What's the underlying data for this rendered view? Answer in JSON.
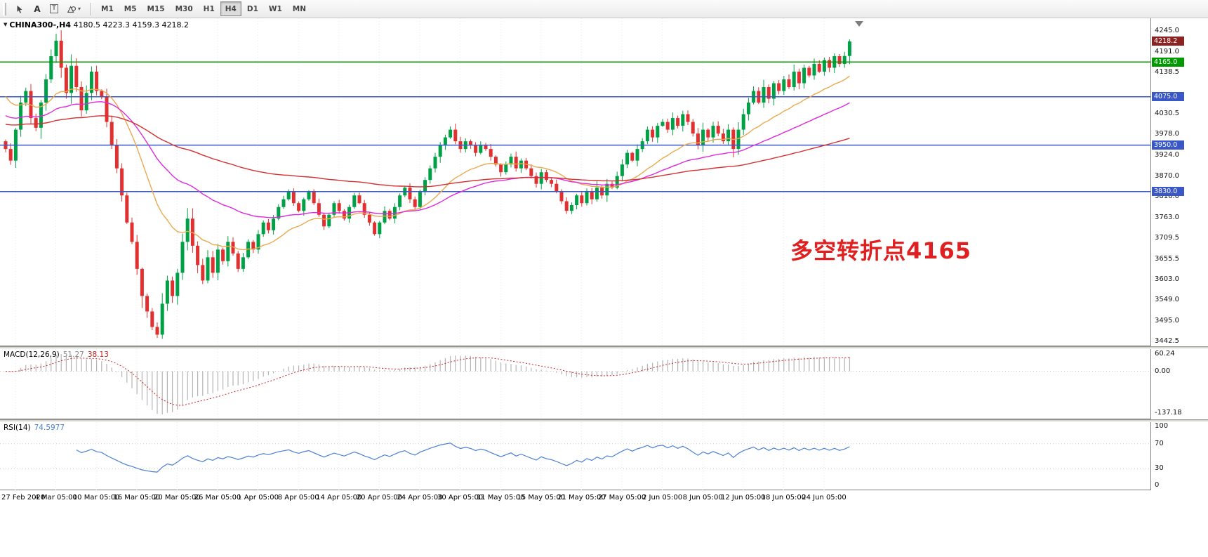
{
  "toolbar": {
    "tools": {
      "text_label": "A",
      "textbox_label": "T"
    },
    "timeframes": [
      "M1",
      "M5",
      "M15",
      "M30",
      "H1",
      "H4",
      "D1",
      "W1",
      "MN"
    ],
    "active_timeframe": "H4"
  },
  "main_chart": {
    "symbol_period": "CHINA300-,H4",
    "ohlc_text": "4180.5 4223.3 4159.3 4218.2",
    "annotation": {
      "text": "多空转折点4165",
      "color": "#E02020"
    },
    "price_scale": {
      "labels": [
        "4245.0",
        "4191.0",
        "4138.5",
        "4030.5",
        "3978.0",
        "3924.0",
        "3870.0",
        "3816.0",
        "3763.0",
        "3709.5",
        "3655.5",
        "3603.0",
        "3549.0",
        "3495.0",
        "3442.5"
      ],
      "tags": [
        {
          "text": "4218.2",
          "value": 4218.2,
          "color": "#8B2323",
          "type": "current-price"
        },
        {
          "text": "4165.0",
          "value": 4165,
          "color": "#009A00",
          "type": "hline"
        },
        {
          "text": "4075.0",
          "value": 4075,
          "color": "#3A57C8",
          "type": "hline"
        },
        {
          "text": "3950.0",
          "value": 3950,
          "color": "#3A57C8",
          "type": "hline"
        },
        {
          "text": "3830.0",
          "value": 3830,
          "color": "#3A57C8",
          "type": "hline"
        }
      ]
    },
    "hlines": [
      {
        "value": 4165,
        "color": "#009A00"
      },
      {
        "value": 4075,
        "color": "#3A57C8"
      },
      {
        "value": 3950,
        "color": "#3A57C8"
      },
      {
        "value": 3830,
        "color": "#3A57C8"
      }
    ]
  },
  "macd_panel": {
    "label": "MACD(12,26,9)",
    "value_main": "51.27",
    "value_signal": "38.13",
    "scale_labels": {
      "max": "60.24",
      "zero": "0.00",
      "min": "-137.18"
    },
    "params": {
      "fast": 12,
      "slow": 26,
      "signal": 9
    },
    "colors": {
      "histogram": "#B4B4B4",
      "signal": "#CC2222"
    }
  },
  "rsi_panel": {
    "label": "RSI(14)",
    "value": "74.5977",
    "period": 14,
    "scale_labels": [
      "100",
      "70",
      "30",
      "0"
    ],
    "levels": [
      70,
      30
    ],
    "color": "#4A7FD4"
  },
  "time_axis": {
    "labels": [
      "27 Feb 2020",
      "4 Mar 05:00",
      "10 Mar 05:00",
      "16 Mar 05:00",
      "20 Mar 05:00",
      "26 Mar 05:00",
      "1 Apr 05:00",
      "8 Apr 05:00",
      "14 Apr 05:00",
      "20 Apr 05:00",
      "24 Apr 05:00",
      "30 Apr 05:00",
      "11 May 05:00",
      "15 May 05:00",
      "21 May 05:00",
      "27 May 05:00",
      "2 Jun 05:00",
      "8 Jun 05:00",
      "12 Jun 05:00",
      "18 Jun 05:00",
      "24 Jun 05:00"
    ]
  },
  "chart_data": {
    "type": "candlestick",
    "symbol": "CHINA300-",
    "timeframe": "H4",
    "price_range": [
      3430,
      4278
    ],
    "first_open": 3960,
    "closes": [
      3940,
      3910,
      3990,
      4060,
      4090,
      4020,
      3995,
      4060,
      4120,
      4180,
      4220,
      4150,
      4085,
      4155,
      4100,
      4040,
      4085,
      4140,
      4090,
      4075,
      4010,
      3950,
      3890,
      3820,
      3750,
      3700,
      3630,
      3560,
      3520,
      3480,
      3460,
      3540,
      3600,
      3560,
      3620,
      3700,
      3760,
      3690,
      3640,
      3600,
      3660,
      3620,
      3680,
      3650,
      3700,
      3670,
      3630,
      3660,
      3700,
      3680,
      3720,
      3750,
      3730,
      3760,
      3790,
      3810,
      3830,
      3800,
      3780,
      3810,
      3830,
      3800,
      3770,
      3740,
      3770,
      3800,
      3780,
      3760,
      3790,
      3820,
      3800,
      3770,
      3750,
      3720,
      3750,
      3780,
      3760,
      3790,
      3820,
      3840,
      3810,
      3790,
      3830,
      3860,
      3890,
      3920,
      3950,
      3970,
      3990,
      3960,
      3940,
      3960,
      3950,
      3930,
      3950,
      3940,
      3920,
      3900,
      3880,
      3900,
      3920,
      3890,
      3910,
      3890,
      3870,
      3850,
      3880,
      3860,
      3850,
      3830,
      3805,
      3780,
      3795,
      3820,
      3800,
      3830,
      3810,
      3840,
      3820,
      3850,
      3840,
      3870,
      3900,
      3930,
      3910,
      3940,
      3960,
      3990,
      3970,
      4000,
      4010,
      3990,
      4020,
      4000,
      4030,
      4010,
      3980,
      3950,
      3990,
      3970,
      4000,
      3980,
      3960,
      3990,
      3940,
      3990,
      4030,
      4060,
      4090,
      4060,
      4100,
      4070,
      4110,
      4090,
      4120,
      4100,
      4140,
      4110,
      4150,
      4130,
      4160,
      4140,
      4170,
      4150,
      4180,
      4160,
      4180.5,
      4218.2
    ],
    "last_candle": [
      4180.5,
      4223.3,
      4159.3,
      4218.2
    ],
    "ma_lines": [
      {
        "name": "ma-fast-orange",
        "period": 20,
        "seed": 4090,
        "color": "#EAA94F"
      },
      {
        "name": "ma-mid-magenta",
        "period": 45,
        "seed": 4030,
        "color": "#DD2ADD"
      },
      {
        "name": "ma-slow-red",
        "period": 120,
        "seed": 4005,
        "color": "#D43030"
      }
    ],
    "colors": {
      "up": "#00A046",
      "down": "#E03030",
      "grid": "#E8E8E8"
    }
  }
}
